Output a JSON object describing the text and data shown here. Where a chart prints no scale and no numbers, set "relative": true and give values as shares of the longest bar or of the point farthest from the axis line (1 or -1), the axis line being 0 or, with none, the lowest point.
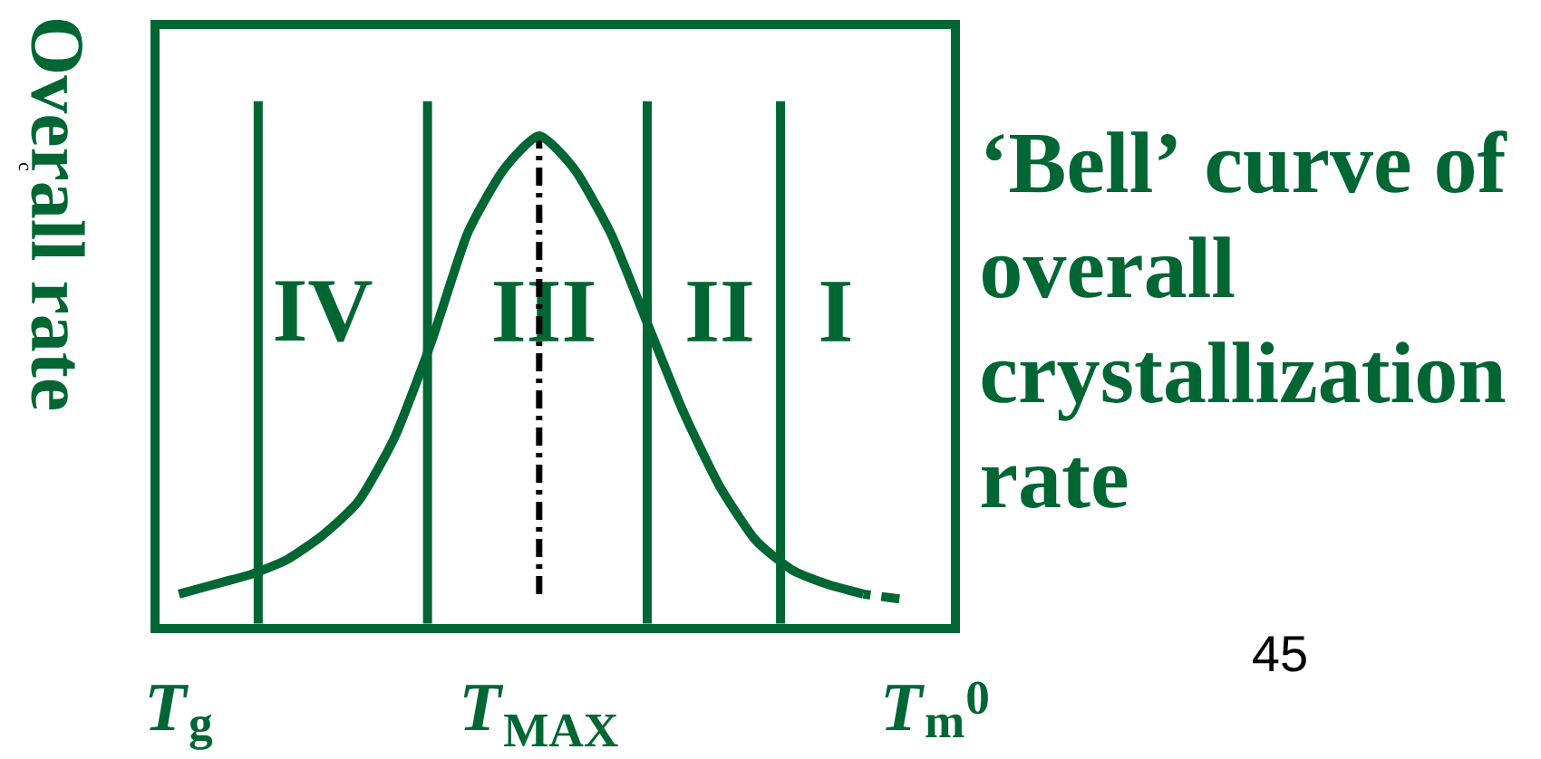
{
  "chart_data": {
    "type": "line",
    "title": "‘Bell’ curve of overall crystallization rate",
    "ylabel": "Overall rate",
    "relative": true,
    "categories": [
      "*T*$_{g}$",
      null,
      null,
      null,
      null,
      null,
      null,
      null,
      null,
      null,
      "*T*$_{MAX}$",
      null,
      null,
      null,
      null,
      null,
      null,
      null,
      null,
      null,
      null,
      "*T*$_{m}$$^{0}$"
    ],
    "series": [
      {
        "color": "#006633",
        "values": [
          0.07,
          0.09,
          0.11,
          0.14,
          0.19,
          0.26,
          0.39,
          0.58,
          0.8,
          0.93,
          1,
          0.93,
          0.8,
          0.62,
          0.44,
          0.29,
          0.18,
          0.12,
          0.09,
          0.07,
          null,
          null
        ]
      },
      {
        "color": "#006633",
        "line_style": "dashed",
        "values": [
          null,
          null,
          null,
          null,
          null,
          null,
          null,
          null,
          null,
          null,
          null,
          null,
          null,
          null,
          null,
          null,
          null,
          null,
          null,
          0.07,
          0.06,
          null
        ]
      }
    ],
    "ref_lines": [
      {
        "axis": "x",
        "value": "*T*$_{MAX}$",
        "color": "#000000",
        "line_style": "dashdot"
      }
    ],
    "annotations": [
      "IV",
      "III",
      "II",
      "I",
      "45",
      "c"
    ]
  }
}
